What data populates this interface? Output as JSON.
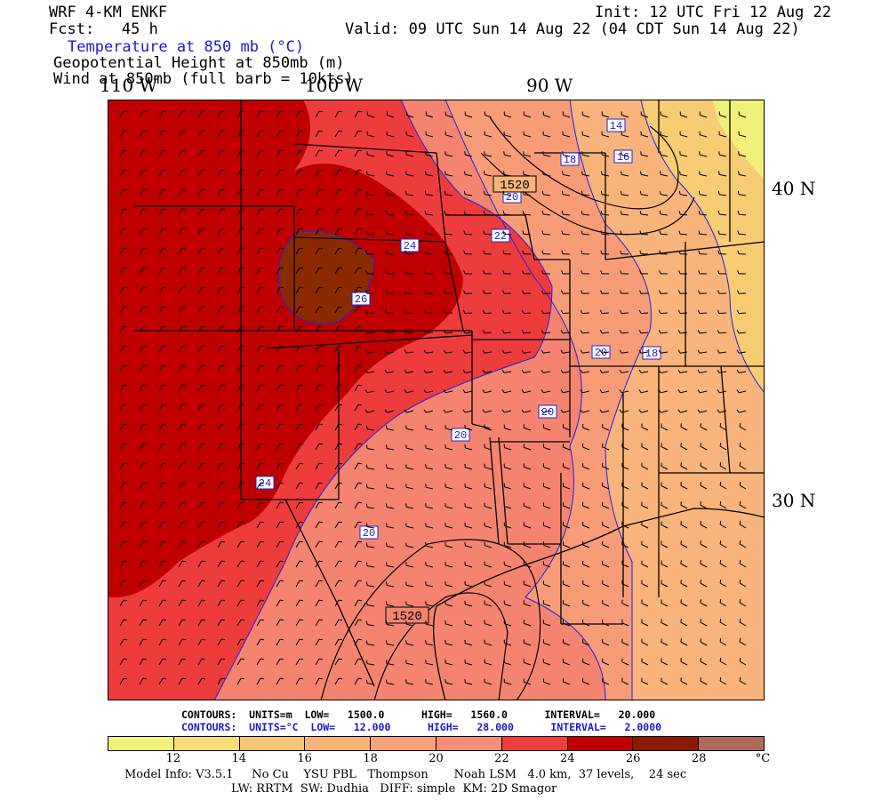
{
  "header": {
    "model": "WRF 4-KM ENKF",
    "fcst": "Fcst:   45 h",
    "init": "Init: 12 UTC Fri 12 Aug 22",
    "valid": "Valid: 09 UTC Sun 14 Aug 22 (04 CDT Sun 14 Aug 22)",
    "field1": "Temperature at 850 mb (°C)",
    "field2": "Geopotential Height at 850mb (m)",
    "field3": "Wind at 850mb (full barb = 10kts)"
  },
  "map": {
    "lon_labels": [
      "110 W",
      "100 W",
      "90 W"
    ],
    "lat_labels": [
      "40 N",
      "30 N"
    ],
    "temp_contour_labels": [
      "14",
      "16",
      "18",
      "20",
      "22",
      "24",
      "26",
      "20",
      "18",
      "20",
      "20",
      "24",
      "20"
    ],
    "height_contour_labels": [
      "1520",
      "1520"
    ],
    "colors": {
      "t12_14": "#f0f07a",
      "t14_16": "#f8cc72",
      "t16_18": "#f8b47a",
      "t18_20": "#f89c78",
      "t20_22": "#f48470",
      "t22_24": "#ee3c3c",
      "t24_26": "#c00000",
      "t26_28": "#8b2a00",
      "contour_temp": "#2020e0",
      "contour_height": "#000000"
    }
  },
  "stats": {
    "height_line": "CONTOURS:  UNITS=m  LOW=   1500.0      HIGH=   1560.0      INTERVAL=   20.000",
    "temp_line": "CONTOURS:  UNITS=°C  LOW=   12.000      HIGH=   28.000      INTERVAL=   2.0000"
  },
  "colorbar": {
    "colors": [
      "#f0f07a",
      "#f8dc78",
      "#f8c478",
      "#f8b478",
      "#f8a27a",
      "#f48e78",
      "#ee3c3c",
      "#c00000",
      "#8b1a00",
      "#b06a5a"
    ],
    "labels": [
      "12",
      "14",
      "16",
      "18",
      "20",
      "22",
      "24",
      "26",
      "28"
    ],
    "unit": "°C"
  },
  "footer": {
    "line1": "Model Info: V3.5.1     No Cu    YSU PBL   Thompson       Noah LSM   4.0 km,  37 levels,    24 sec",
    "line2": "LW: RRTM  SW: Dudhia   DIFF: simple  KM: 2D Smagor"
  }
}
